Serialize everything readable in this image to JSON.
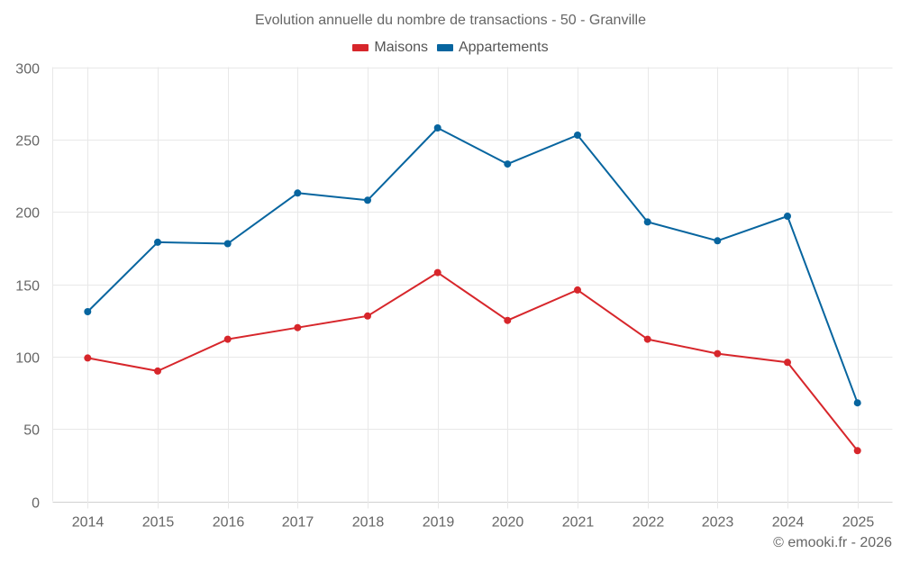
{
  "chart_data": {
    "type": "line",
    "title": "Evolution annuelle du nombre de transactions - 50 - Granville",
    "xlabel": "",
    "ylabel": "",
    "categories": [
      "2014",
      "2015",
      "2016",
      "2017",
      "2018",
      "2019",
      "2020",
      "2021",
      "2022",
      "2023",
      "2024",
      "2025"
    ],
    "series": [
      {
        "name": "Maisons",
        "color": "#d7262b",
        "values": [
          99,
          90,
          112,
          120,
          128,
          158,
          125,
          146,
          112,
          102,
          96,
          35
        ]
      },
      {
        "name": "Appartements",
        "color": "#07659f",
        "values": [
          131,
          179,
          178,
          213,
          208,
          258,
          233,
          253,
          193,
          180,
          197,
          68
        ]
      }
    ],
    "ylim": [
      0,
      300
    ],
    "yticks": [
      0,
      50,
      100,
      150,
      200,
      250,
      300
    ],
    "grid": true,
    "legend_position": "top-center",
    "credit": "© emooki.fr - 2026"
  }
}
